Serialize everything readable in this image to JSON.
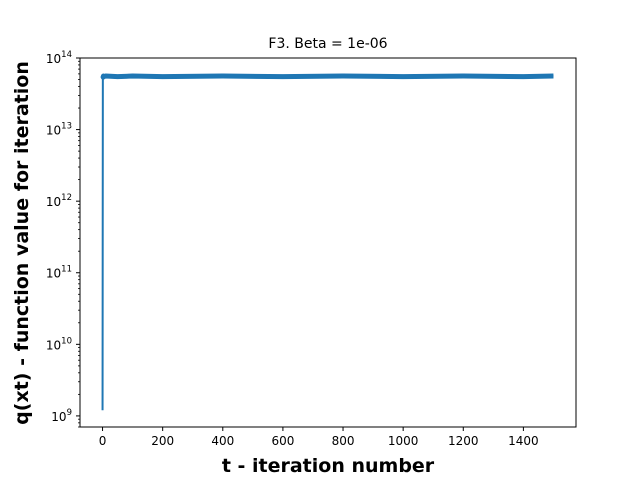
{
  "chart_data": {
    "type": "line",
    "title": "F3. Beta = 1e-06",
    "xlabel": "t - iteration number",
    "ylabel": "q(xt) - function value for iteration",
    "xlim": [
      -75,
      1575
    ],
    "ylim": [
      700000000.0,
      100000000000000.0
    ],
    "yscale": "log",
    "xticks": [
      0,
      200,
      400,
      600,
      800,
      1000,
      1200,
      1400
    ],
    "xtick_labels": [
      "0",
      "200",
      "400",
      "600",
      "800",
      "1000",
      "1200",
      "1400"
    ],
    "yticks": [
      1000000000.0,
      10000000000.0,
      100000000000.0,
      1000000000000.0,
      10000000000000.0,
      100000000000000.0
    ],
    "ytick_labels": [
      {
        "base": "10",
        "exp": "9"
      },
      {
        "base": "10",
        "exp": "10"
      },
      {
        "base": "10",
        "exp": "11"
      },
      {
        "base": "10",
        "exp": "12"
      },
      {
        "base": "10",
        "exp": "13"
      },
      {
        "base": "10",
        "exp": "14"
      }
    ],
    "grid": false,
    "series": [
      {
        "color": "#1f77b4",
        "x": [
          0,
          1,
          2,
          3,
          5,
          10,
          50,
          100,
          200,
          400,
          600,
          800,
          1000,
          1200,
          1400,
          1500
        ],
        "y": [
          1200000000.0,
          56000000000000.0,
          54000000000000.0,
          56000000000000.0,
          55000000000000.0,
          56000000000000.0,
          55000000000000.0,
          56000000000000.0,
          55000000000000.0,
          56000000000000.0,
          55000000000000.0,
          56000000000000.0,
          55000000000000.0,
          56000000000000.0,
          55000000000000.0,
          56000000000000.0
        ]
      }
    ]
  }
}
